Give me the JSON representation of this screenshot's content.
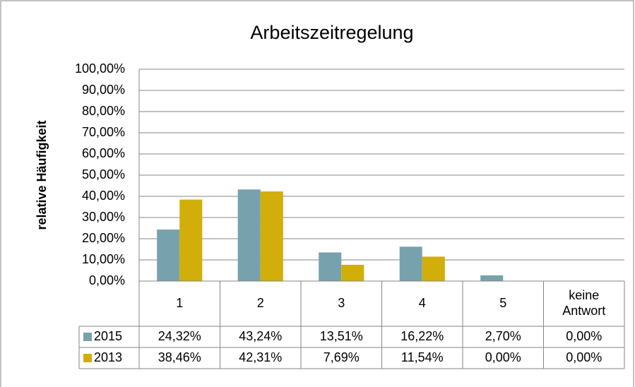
{
  "chart_data": {
    "type": "bar",
    "title": "Arbeitszeitregelung",
    "y_label": "relative Häufigkeit",
    "categories": [
      "1",
      "2",
      "3",
      "4",
      "5",
      "keine Antwort"
    ],
    "series": [
      {
        "name": "2015",
        "color": "#77a2ad",
        "values": [
          24.32,
          43.24,
          13.51,
          16.22,
          2.7,
          0.0
        ],
        "value_labels": [
          "24,32%",
          "43,24%",
          "13,51%",
          "16,22%",
          "2,70%",
          "0,00%"
        ]
      },
      {
        "name": "2013",
        "color": "#d1ae0a",
        "values": [
          38.46,
          42.31,
          7.69,
          11.54,
          0.0,
          0.0
        ],
        "value_labels": [
          "38,46%",
          "42,31%",
          "7,69%",
          "11,54%",
          "0,00%",
          "0,00%"
        ]
      }
    ],
    "ylim": [
      0,
      100
    ],
    "yticks": [
      {
        "value": 0,
        "label": "0,00%"
      },
      {
        "value": 10,
        "label": "10,00%"
      },
      {
        "value": 20,
        "label": "20,00%"
      },
      {
        "value": 30,
        "label": "30,00%"
      },
      {
        "value": 40,
        "label": "40,00%"
      },
      {
        "value": 50,
        "label": "50,00%"
      },
      {
        "value": 60,
        "label": "60,00%"
      },
      {
        "value": 70,
        "label": "70,00%"
      },
      {
        "value": 80,
        "label": "80,00%"
      },
      {
        "value": 90,
        "label": "90,00%"
      },
      {
        "value": 100,
        "label": "100,00%"
      }
    ],
    "grid": true,
    "data_table": true
  }
}
